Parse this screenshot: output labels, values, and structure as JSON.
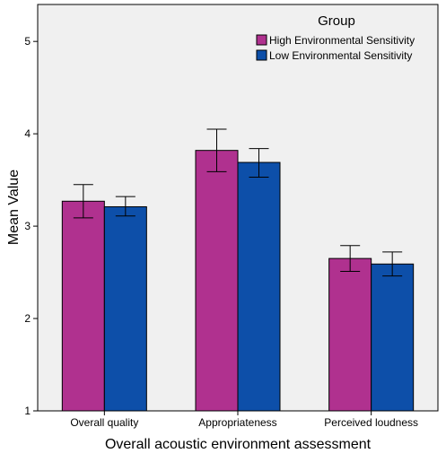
{
  "chart_data": {
    "type": "bar",
    "title": "",
    "xlabel": "Overall acoustic environment assessment",
    "ylabel": "Mean Value",
    "ylim": [
      1,
      5.4
    ],
    "yticks": [
      1,
      2,
      3,
      4,
      5
    ],
    "grid": false,
    "legend": {
      "title": "Group",
      "placement": "top-right"
    },
    "categories": [
      "Overall quality",
      "Appropriateness",
      "Perceived loudness"
    ],
    "series": [
      {
        "name": "High Environmental Sensitivity",
        "color": "#b0318f",
        "values": [
          3.27,
          3.82,
          2.65
        ],
        "error_low": [
          3.09,
          3.59,
          2.51
        ],
        "error_high": [
          3.45,
          4.05,
          2.79
        ]
      },
      {
        "name": "Low Environmental Sensitivity",
        "color": "#0d4fa9",
        "values": [
          3.21,
          3.69,
          2.59
        ],
        "error_low": [
          3.11,
          3.53,
          2.46
        ],
        "error_high": [
          3.32,
          3.84,
          2.72
        ]
      }
    ]
  }
}
